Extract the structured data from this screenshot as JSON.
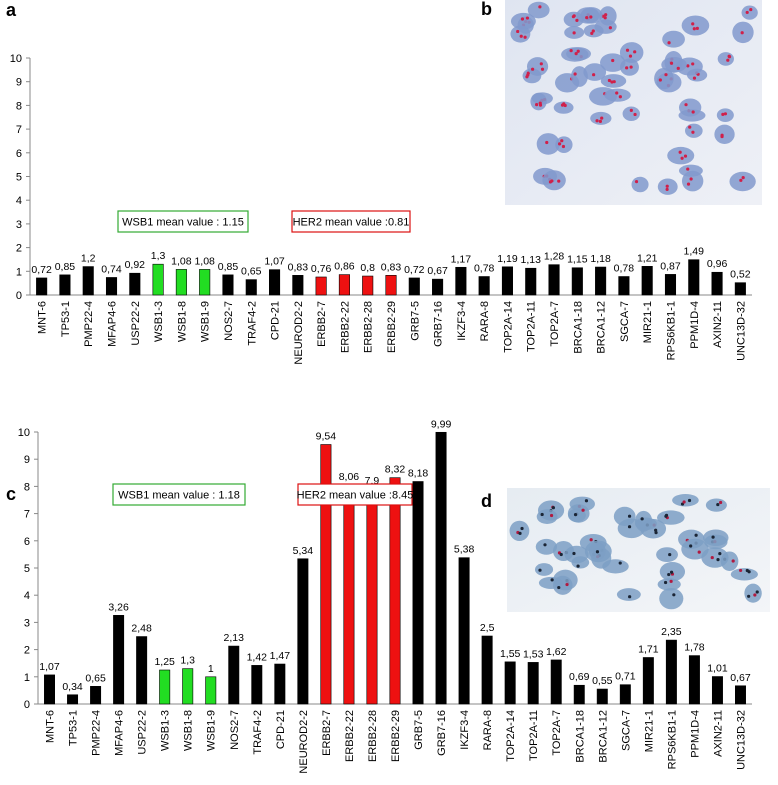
{
  "chart_data": [
    {
      "type": "bar",
      "panel": "a",
      "categories": [
        "MNT-6",
        "TP53-1",
        "PMP22-4",
        "MFAP4-6",
        "USP22-2",
        "WSB1-3",
        "WSB1-8",
        "WSB1-9",
        "NOS2-7",
        "TRAF4-2",
        "CPD-21",
        "NEUROD2-2",
        "ERBB2-7",
        "ERBB2-22",
        "ERBB2-28",
        "ERBB2-29",
        "GRB7-5",
        "GRB7-16",
        "IKZF3-4",
        "RARA-8",
        "TOP2A-14",
        "TOP2A-11",
        "TOP2A-7",
        "BRCA1-18",
        "BRCA1-12",
        "SGCA-7",
        "MIR21-1",
        "RPS6KB1-1",
        "PPM1D-4",
        "AXIN2-11",
        "UNC13D-32"
      ],
      "values": [
        0.72,
        0.85,
        1.2,
        0.74,
        0.92,
        1.3,
        1.08,
        1.08,
        0.85,
        0.65,
        1.07,
        0.83,
        0.76,
        0.86,
        0.8,
        0.83,
        0.72,
        0.67,
        1.17,
        0.78,
        1.19,
        1.13,
        1.28,
        1.15,
        1.18,
        0.78,
        1.21,
        0.87,
        1.49,
        0.96,
        0.52
      ],
      "value_labels": [
        "0,72",
        "0,85",
        "1,2",
        "0,74",
        "0,92",
        "1,3",
        "1,08",
        "1,08",
        "0,85",
        "0,65",
        "1,07",
        "0,83",
        "0,76",
        "0,86",
        "0,8",
        "0,83",
        "0,72",
        "0,67",
        "1,17",
        "0,78",
        "1,19",
        "1,13",
        "1,28",
        "1,15",
        "1,18",
        "0,78",
        "1,21",
        "0,87",
        "1,49",
        "0,96",
        "0,52"
      ],
      "colors": [
        "#000000",
        "#000000",
        "#000000",
        "#000000",
        "#000000",
        "#22dd22",
        "#22dd22",
        "#22dd22",
        "#000000",
        "#000000",
        "#000000",
        "#000000",
        "#ee1111",
        "#ee1111",
        "#ee1111",
        "#ee1111",
        "#000000",
        "#000000",
        "#000000",
        "#000000",
        "#000000",
        "#000000",
        "#000000",
        "#000000",
        "#000000",
        "#000000",
        "#000000",
        "#000000",
        "#000000",
        "#000000",
        "#000000"
      ],
      "ylim": [
        0,
        10
      ],
      "yticks": [
        0,
        1,
        2,
        3,
        4,
        5,
        6,
        7,
        8,
        9,
        10
      ],
      "annotations": [
        {
          "text": "WSB1 mean value : 1.15",
          "color": "#33aa33"
        },
        {
          "text": "HER2 mean value :0.81",
          "color": "#dd1111"
        }
      ]
    },
    {
      "type": "bar",
      "panel": "c",
      "categories": [
        "MNT-6",
        "TP53-1",
        "PMP22-4",
        "MFAP4-6",
        "USP22-2",
        "WSB1-3",
        "WSB1-8",
        "WSB1-9",
        "NOS2-7",
        "TRAF4-2",
        "CPD-21",
        "NEUROD2-2",
        "ERBB2-7",
        "ERBB2-22",
        "ERBB2-28",
        "ERBB2-29",
        "GRB7-5",
        "GRB7-16",
        "IKZF3-4",
        "RARA-8",
        "TOP2A-14",
        "TOP2A-11",
        "TOP2A-7",
        "BRCA1-18",
        "BRCA1-12",
        "SGCA-7",
        "MIR21-1",
        "RPS6KB1-1",
        "PPM1D-4",
        "AXIN2-11",
        "UNC13D-32"
      ],
      "values": [
        1.07,
        0.34,
        0.65,
        3.26,
        2.48,
        1.25,
        1.3,
        1,
        2.13,
        1.42,
        1.47,
        5.34,
        9.54,
        8.06,
        7.9,
        8.32,
        8.18,
        9.99,
        5.38,
        2.5,
        1.55,
        1.53,
        1.62,
        0.69,
        0.55,
        0.71,
        1.71,
        2.35,
        1.78,
        1.01,
        0.67
      ],
      "value_labels": [
        "1,07",
        "0,34",
        "0,65",
        "3,26",
        "2,48",
        "1,25",
        "1,3",
        "1",
        "2,13",
        "1,42",
        "1,47",
        "5,34",
        "9,54",
        "8,06",
        "7,9",
        "8,32",
        "8,18",
        "9,99",
        "5,38",
        "2,5",
        "1,55",
        "1,53",
        "1,62",
        "0,69",
        "0,55",
        "0,71",
        "1,71",
        "2,35",
        "1,78",
        "1,01",
        "0,67"
      ],
      "colors": [
        "#000000",
        "#000000",
        "#000000",
        "#000000",
        "#000000",
        "#22dd22",
        "#22dd22",
        "#22dd22",
        "#000000",
        "#000000",
        "#000000",
        "#000000",
        "#ee1111",
        "#ee1111",
        "#ee1111",
        "#ee1111",
        "#000000",
        "#000000",
        "#000000",
        "#000000",
        "#000000",
        "#000000",
        "#000000",
        "#000000",
        "#000000",
        "#000000",
        "#000000",
        "#000000",
        "#000000",
        "#000000",
        "#000000"
      ],
      "ylim": [
        0,
        10
      ],
      "yticks": [
        0,
        1,
        2,
        3,
        4,
        5,
        6,
        7,
        8,
        9,
        10
      ],
      "annotations": [
        {
          "text": "WSB1 mean value : 1.18",
          "color": "#33aa33"
        },
        {
          "text": "HER2 mean value :8.45",
          "color": "#dd1111"
        }
      ]
    }
  ],
  "images": [
    {
      "panel": "b"
    },
    {
      "panel": "d"
    }
  ]
}
